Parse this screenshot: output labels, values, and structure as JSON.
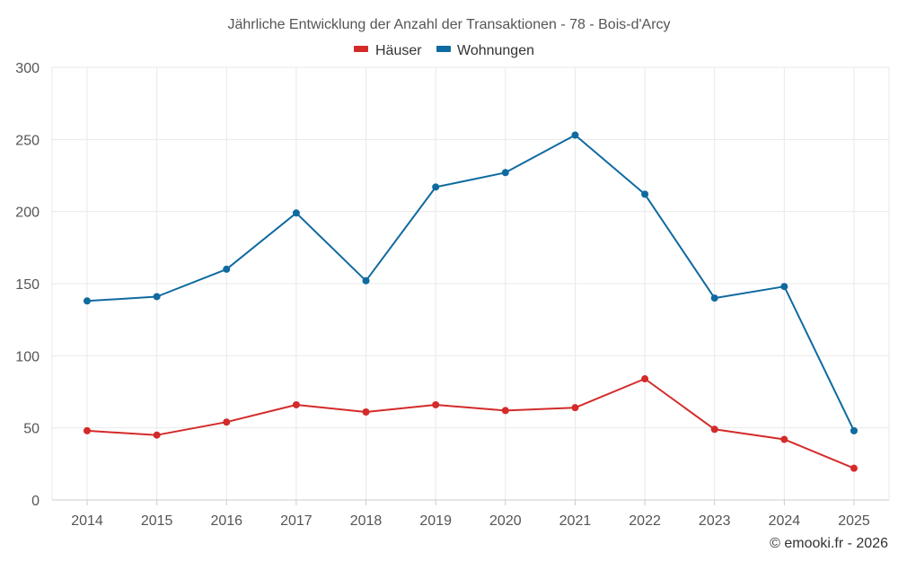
{
  "chart_data": {
    "type": "line",
    "title": "Jährliche Entwicklung der Anzahl der Transaktionen - 78 - Bois-d'Arcy",
    "categories": [
      "2014",
      "2015",
      "2016",
      "2017",
      "2018",
      "2019",
      "2020",
      "2021",
      "2022",
      "2023",
      "2024",
      "2025"
    ],
    "series": [
      {
        "name": "Häuser",
        "color": "#d42a2a",
        "values": [
          48,
          45,
          54,
          66,
          61,
          66,
          62,
          64,
          84,
          49,
          42,
          22
        ]
      },
      {
        "name": "Wohnungen",
        "color": "#0f6aa0",
        "values": [
          138,
          141,
          160,
          199,
          152,
          217,
          227,
          253,
          212,
          140,
          148,
          48
        ]
      }
    ],
    "ylim": [
      0,
      300
    ],
    "yticks": [
      "0",
      "50",
      "100",
      "150",
      "200",
      "250",
      "300"
    ],
    "xlabel": "",
    "ylabel": "",
    "grid": true,
    "legend_position": "top-center"
  },
  "credit": "© emooki.fr - 2026"
}
